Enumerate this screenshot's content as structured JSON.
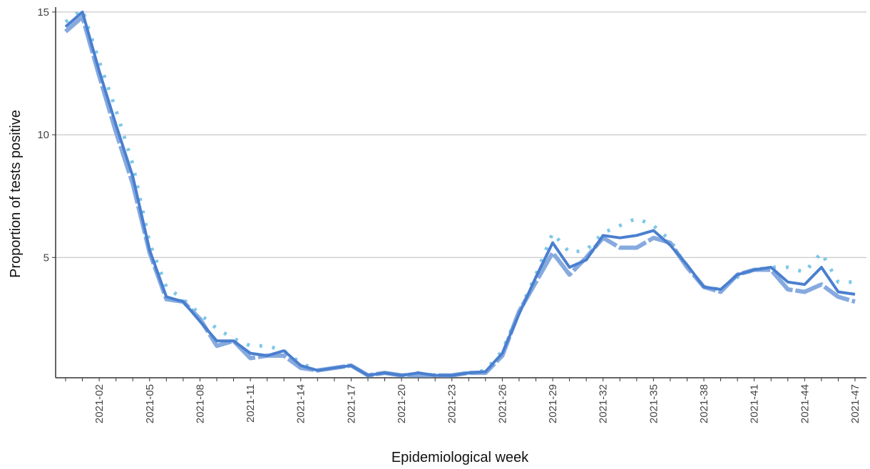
{
  "chart_data": {
    "type": "line",
    "x_label": "Epidemiological week",
    "y_label": "Proportion of tests positive",
    "categories": [
      null,
      null,
      "2021-02",
      null,
      null,
      "2021-05",
      null,
      null,
      "2021-08",
      null,
      null,
      "2021-11",
      null,
      null,
      "2021-14",
      null,
      null,
      "2021-17",
      null,
      null,
      "2021-20",
      null,
      null,
      "2021-23",
      null,
      null,
      "2021-26",
      null,
      null,
      "2021-29",
      null,
      null,
      "2021-32",
      null,
      null,
      "2021-35",
      null,
      null,
      "2021-38",
      null,
      null,
      "2021-41",
      null,
      null,
      "2021-44",
      null,
      null,
      "2021-47"
    ],
    "series": [
      {
        "color": "#7ec8e8",
        "dash": "dotted",
        "values": [
          14.6,
          15.1,
          13.0,
          11.0,
          8.8,
          5.6,
          3.8,
          3.3,
          2.7,
          2.1,
          1.7,
          1.4,
          1.4,
          1.2,
          0.7,
          0.4,
          0.5,
          0.6,
          0.2,
          0.3,
          0.2,
          0.3,
          0.2,
          0.2,
          0.3,
          0.4,
          1.2,
          2.8,
          4.3,
          6.0,
          5.2,
          5.3,
          6.0,
          6.3,
          6.6,
          6.3,
          5.7,
          4.6,
          3.8,
          3.7,
          4.2,
          4.5,
          4.6,
          4.6,
          4.4,
          5.2,
          4.0,
          4.0
        ]
      },
      {
        "color": "#86aadf",
        "dash": "dashed",
        "values": [
          14.2,
          14.8,
          12.4,
          10.1,
          8.0,
          5.2,
          3.3,
          3.2,
          2.5,
          1.4,
          1.6,
          0.9,
          1.0,
          1.0,
          0.5,
          0.4,
          0.5,
          0.6,
          0.2,
          0.3,
          0.2,
          0.2,
          0.2,
          0.2,
          0.3,
          0.3,
          1.0,
          2.8,
          4.0,
          5.2,
          4.3,
          5.0,
          5.8,
          5.4,
          5.4,
          5.8,
          5.6,
          4.6,
          3.8,
          3.6,
          4.3,
          4.5,
          4.5,
          3.7,
          3.6,
          3.9,
          3.4,
          3.2
        ]
      },
      {
        "color": "#4a7fcf",
        "dash": "solid",
        "values": [
          14.4,
          15.0,
          12.6,
          10.4,
          8.3,
          5.3,
          3.4,
          3.2,
          2.4,
          1.6,
          1.6,
          1.1,
          1.0,
          1.2,
          0.6,
          0.4,
          0.5,
          0.6,
          0.2,
          0.3,
          0.2,
          0.3,
          0.2,
          0.2,
          0.3,
          0.35,
          1.1,
          2.7,
          4.2,
          5.6,
          4.6,
          4.9,
          5.9,
          5.8,
          5.9,
          6.1,
          5.5,
          4.7,
          3.8,
          3.7,
          4.3,
          4.5,
          4.6,
          4.0,
          3.9,
          4.6,
          3.6,
          3.5
        ]
      }
    ],
    "ylim": [
      0.1,
      15.2
    ],
    "yticks": [
      5,
      10,
      15
    ],
    "grid": true
  }
}
